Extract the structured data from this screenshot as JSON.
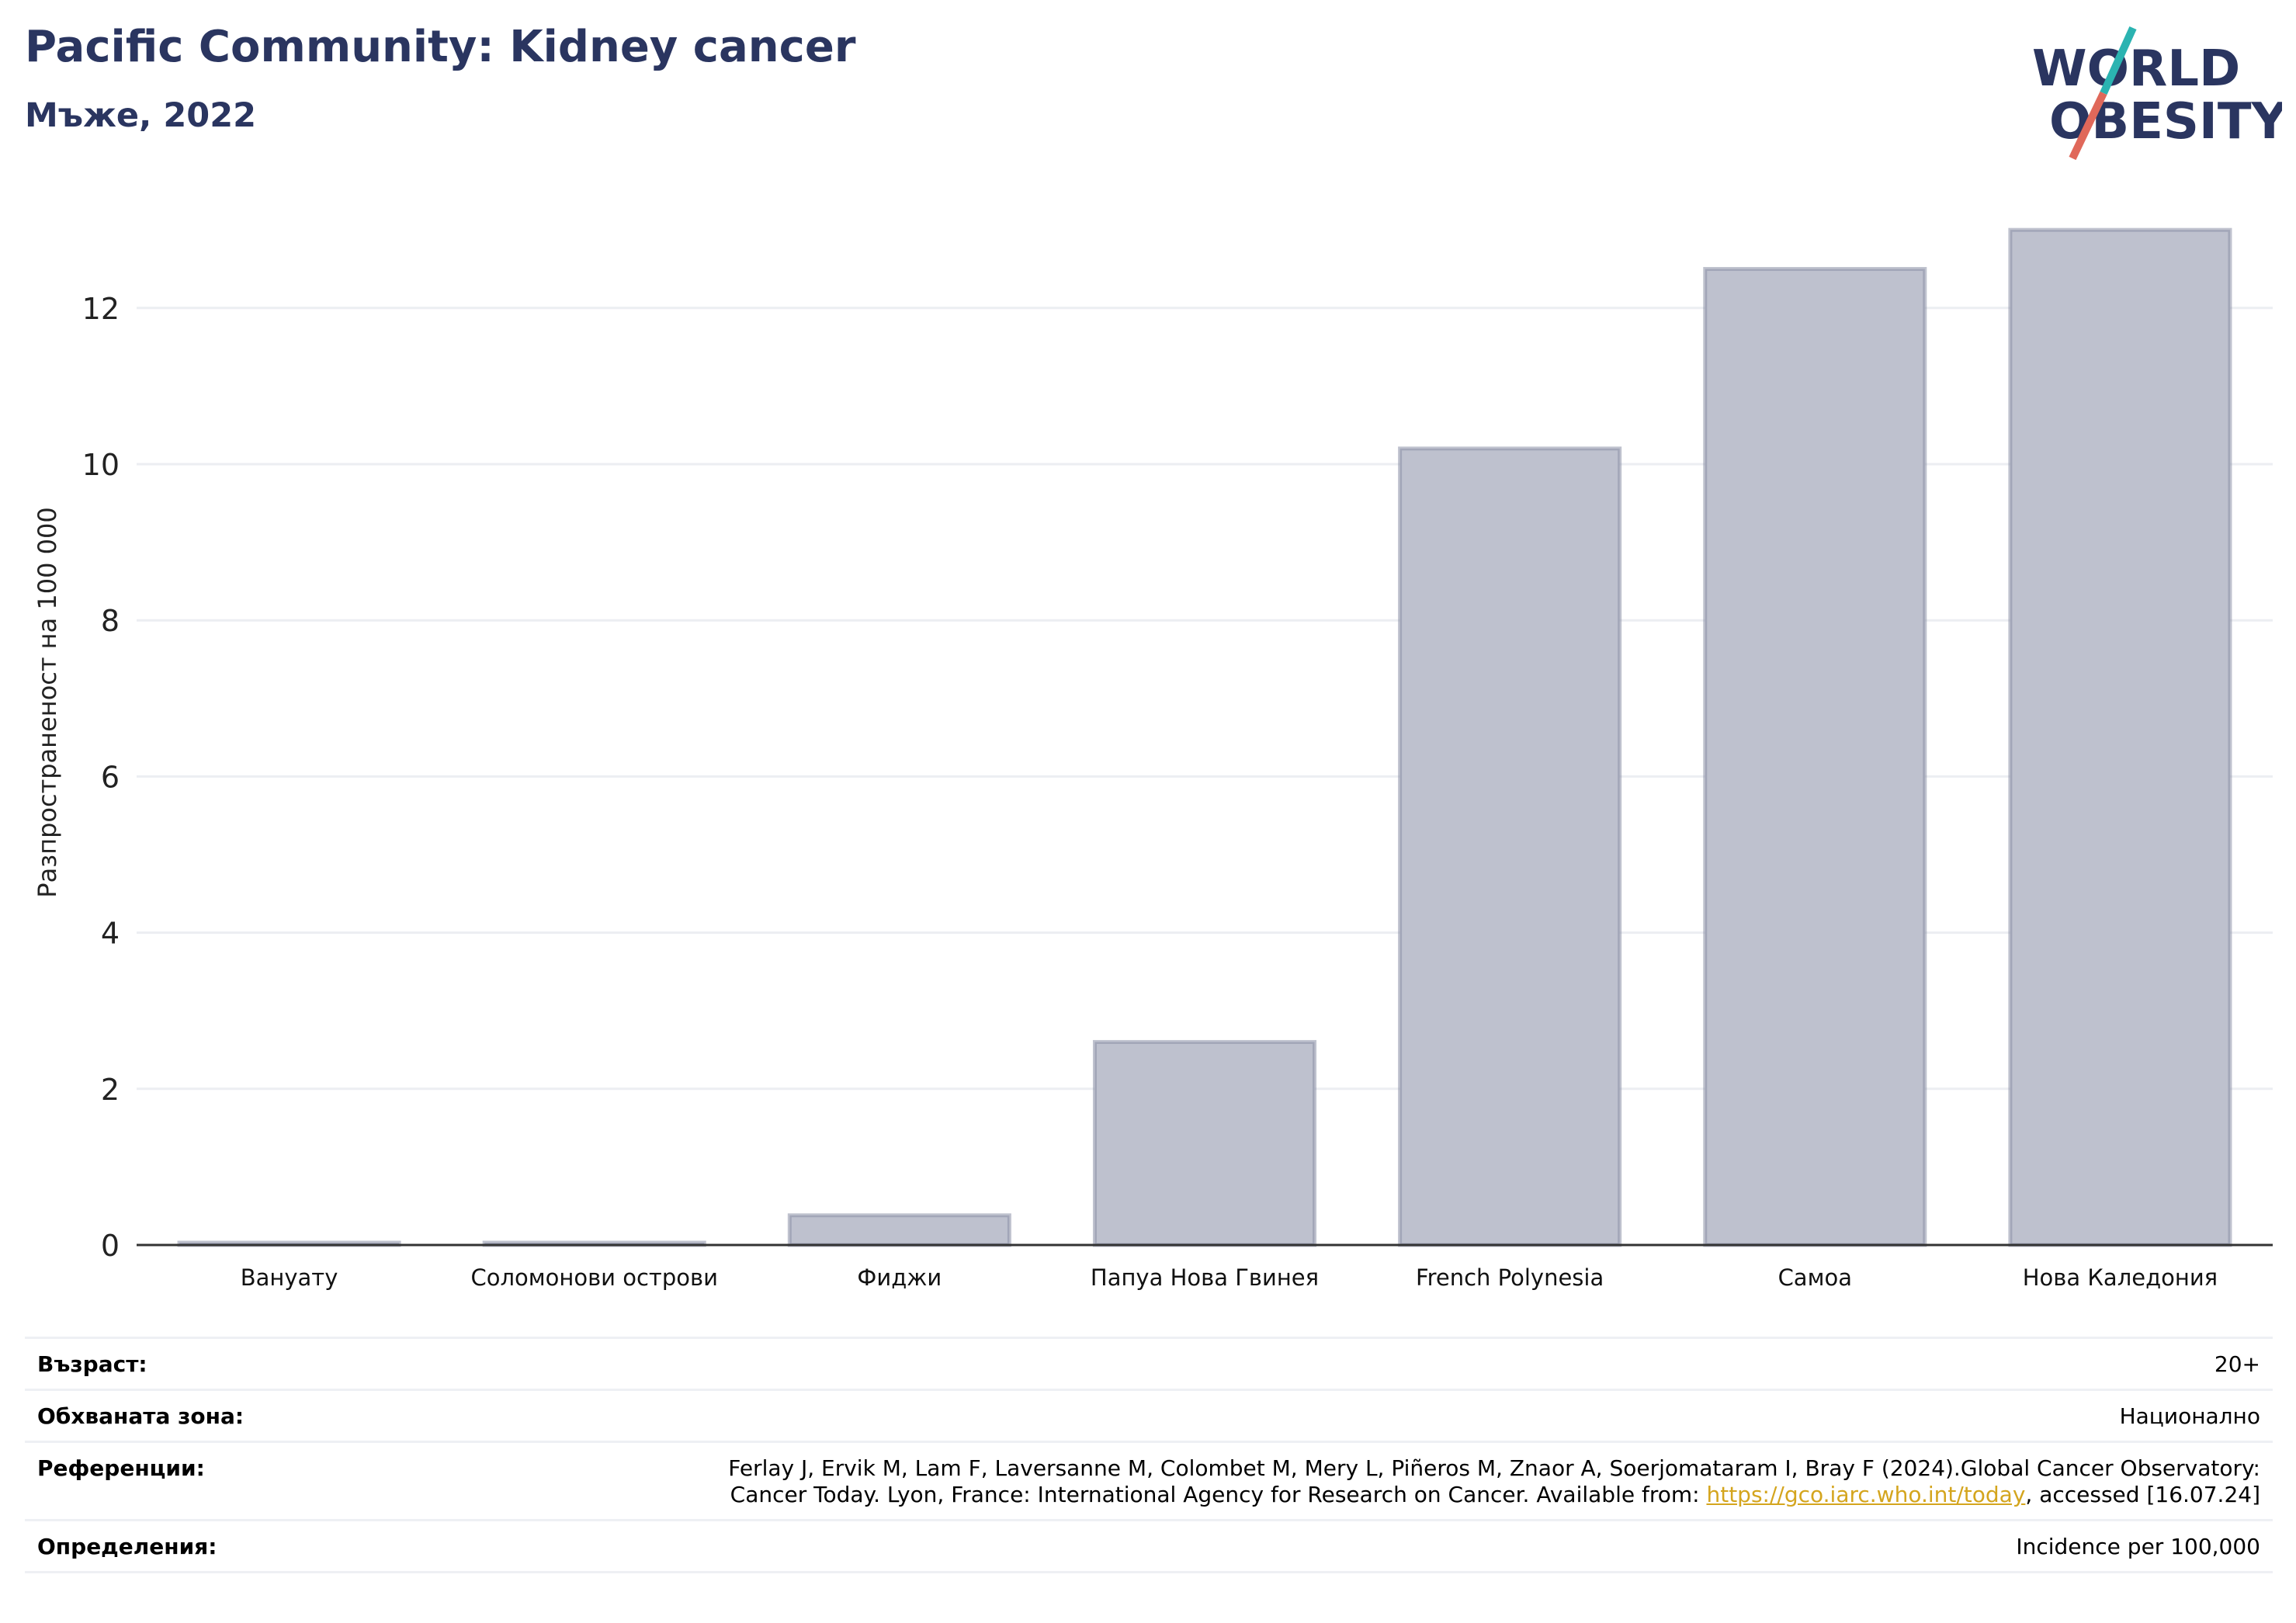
{
  "header": {
    "title": "Pacific Community: Kidney cancer",
    "subtitle": "Мъже, 2022"
  },
  "logo": {
    "line1": "WORLD",
    "line2": "OBESITY",
    "colors": {
      "text": "#2a3560",
      "accent_teal": "#2bb3b1",
      "accent_red": "#e0685a"
    }
  },
  "chart_data": {
    "type": "bar",
    "categories": [
      "Вануату",
      "Соломонови острови",
      "Фиджи",
      "Папуа Нова Гвинея",
      "French Polynesia",
      "Самоа",
      "Нова Каледония"
    ],
    "values": [
      0.02,
      0.02,
      0.38,
      2.6,
      10.2,
      12.5,
      13.0
    ],
    "title": "Pacific Community: Kidney cancer",
    "subtitle": "Мъже, 2022",
    "xlabel": "",
    "ylabel": "Разпространеност  на 100 000",
    "ylim": [
      0,
      13.3
    ],
    "yticks": [
      0,
      2,
      4,
      6,
      8,
      10,
      12
    ],
    "grid": true,
    "legend": "none",
    "colors": {
      "bar_fill": "#bec1ce",
      "bar_stroke": "#8a8fa6",
      "grid": "#eceef2",
      "axis": "#333333"
    }
  },
  "info": {
    "age": {
      "label": "Възраст:",
      "value": "20+"
    },
    "coverage": {
      "label": "Обхваната зона:",
      "value": "Национално"
    },
    "references": {
      "label": "Референции:",
      "line1": "Ferlay J, Ervik M, Lam F, Laversanne M, Colombet M, Mery L, Piñeros M, Znaor A, Soerjomataram I, Bray F (2024).Global Cancer Observatory:",
      "line2_pre": "Cancer Today. Lyon, France: International Agency for Research on Cancer. Available from: ",
      "link": "https://gco.iarc.who.int/today",
      "line2_post": ", accessed [16.07.24]"
    },
    "definitions": {
      "label": "Определения:",
      "value": "Incidence per 100,000"
    }
  }
}
